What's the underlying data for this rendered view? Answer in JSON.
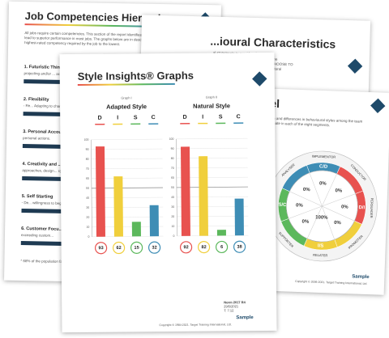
{
  "competencies": {
    "title": "Job Competencies Hierarchy",
    "intro": "All jobs require certain competencies. This section of the report identifies those competencies that lead to superior performance in most jobs. The graphs below are in descending order from the highest-rated competency required by the job to the lowest.",
    "items": [
      {
        "title": "1. Futuristic Thinking",
        "desc": "projecting and/or ... actualized."
      },
      {
        "title": "2. Flexibility",
        "desc": "- Re... Adapting to change"
      },
      {
        "title": "3. Personal Accou...",
        "desc": "personal actions."
      },
      {
        "title": "4. Creativity and ...",
        "desc": "approaches, design... systems to achieve"
      },
      {
        "title": "5. Self Starting",
        "desc": "- De... willingness to begin"
      },
      {
        "title": "6. Customer Focu...",
        "desc": "exceeding custom..."
      }
    ],
    "footnote": "* 68% of the population fall..."
  },
  "behaviour": {
    "title": "...ioural Characteristics",
    "lines": [
      "...al statements to provide a broad",
      "...ntify the basic natural behaviour that the",
      "...ements identify HOW SHE WOULD CHOOSE TO",
      "...better understanding of Jane Doe's natural",
      "...y others.",
      "...\"big picture.\" She"
    ]
  },
  "wheel": {
    "title": "...el",
    "lines": [
      "...ation and differences in behavioural styles among the team",
      "...ordinate in each of the eight segments."
    ],
    "segments": [
      "IMPLEMENTOR",
      "CONDUCTOR",
      "PERSUADER",
      "PROMOTER",
      "RELATER",
      "SUPPORTER",
      "COORDINATOR",
      "ANALYSER"
    ],
    "letters": [
      "C/D",
      "D/I",
      "I/S",
      "S/C"
    ],
    "cells": [
      "0%",
      "0%",
      "0%",
      "0%",
      "0%",
      "100%",
      "0%",
      "0%"
    ],
    "sample": "Sample",
    "copyright": "Copyright © 2006-2021. Target Training International, Ltd."
  },
  "front": {
    "title": "Style Insights® Graphs",
    "yticks": [
      0,
      10,
      20,
      30,
      40,
      50,
      60,
      70,
      80,
      90,
      100
    ],
    "ylim": [
      0,
      100
    ],
    "letters": [
      "D",
      "I",
      "S",
      "C"
    ],
    "colors": [
      "#e8524f",
      "#f0cf3c",
      "#5cb85c",
      "#3e8db5"
    ],
    "graphs": [
      {
        "label": "Graph I",
        "name": "Adapted Style",
        "values": [
          93,
          62,
          15,
          32
        ]
      },
      {
        "label": "Graph II",
        "name": "Natural Style",
        "values": [
          92,
          82,
          6,
          38
        ]
      }
    ],
    "norm": "Norm 2017 R4",
    "date": "29/5/2021",
    "time": "T: 7:12",
    "sample": "Sample",
    "copyright": "Copyright © 1984-2021. Target Training International, Ltd."
  }
}
